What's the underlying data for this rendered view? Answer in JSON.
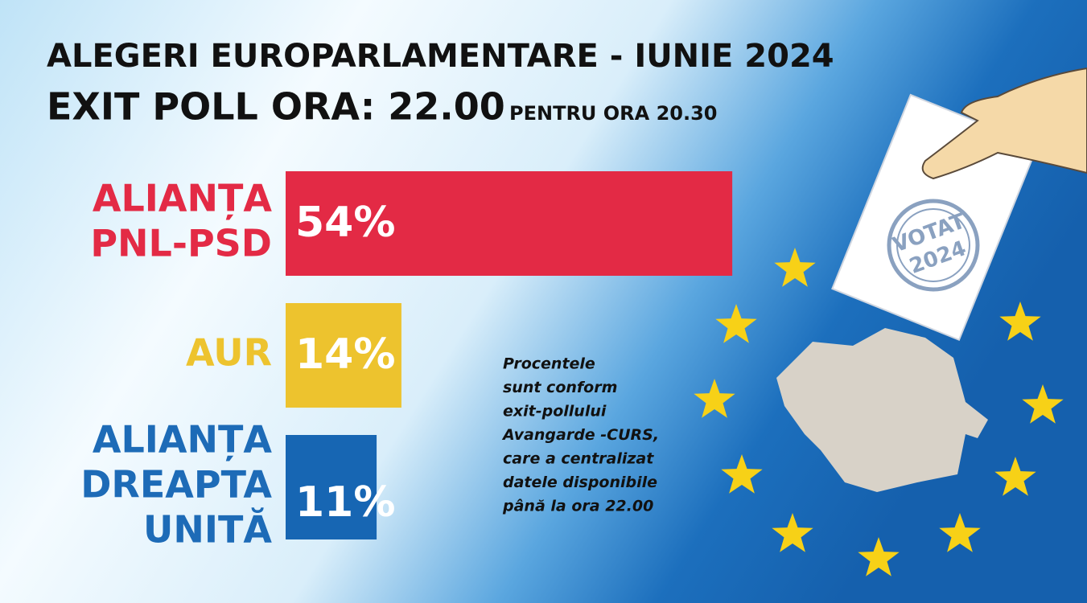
{
  "chart_data": {
    "type": "bar",
    "title": "ALEGERI  EUROPARLAMENTARE  - IUNIE 2024",
    "subtitle": "EXIT POLL ORA: 22.00",
    "subtitle_note": "PENTRU ORA 20.30",
    "categories": [
      [
        "ALIANȚA",
        "PNL-PSD"
      ],
      [
        "AUR"
      ],
      [
        "ALIANȚA",
        "DREAPTA",
        "UNITĂ"
      ]
    ],
    "values": [
      54,
      14,
      11
    ],
    "value_labels": [
      "54%",
      "14%",
      "11%"
    ],
    "colors": [
      "#e32a45",
      "#edc32e",
      "#1766b3"
    ],
    "annotation": [
      "Procentele",
      "sunt conform",
      "exit-pollului",
      "Avangarde -CURS,",
      "care a centralizat",
      "datele disponibile",
      "până la ora 22.00"
    ],
    "stamp": [
      "VOTAT",
      "2024"
    ]
  }
}
